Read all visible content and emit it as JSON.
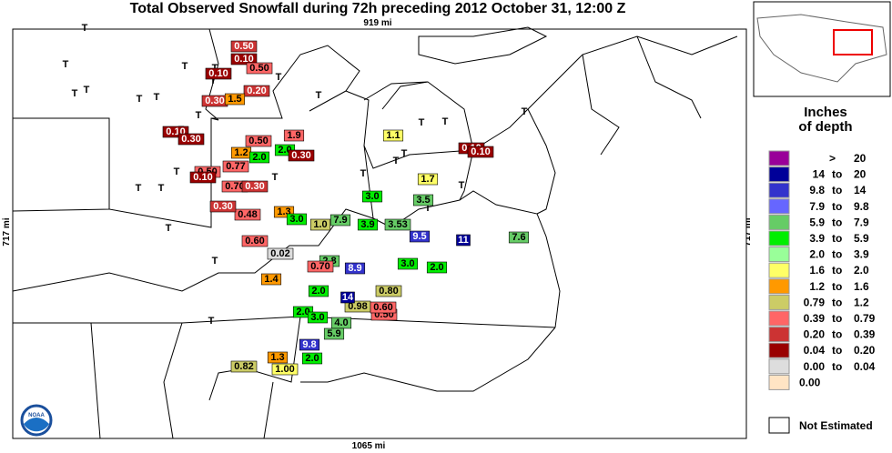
{
  "header": {
    "title": "Total Observed Snowfall during 72h preceding 2012 October 31, 12:00 Z",
    "top_scale": "919 mi",
    "bottom_scale": "1065 mi",
    "left_scale": "717 mi",
    "right_scale": "717 mi"
  },
  "legend": {
    "title_line1": "Inches",
    "title_line2": "of depth",
    "rows": [
      {
        "color": "#990099",
        "low": ">",
        "high": "20"
      },
      {
        "color": "#000099",
        "low": "14",
        "to": "to",
        "high": "20"
      },
      {
        "color": "#3333cc",
        "low": "9.8",
        "to": "to",
        "high": "14"
      },
      {
        "color": "#6666ff",
        "low": "7.9",
        "to": "to",
        "high": "9.8"
      },
      {
        "color": "#66cc66",
        "low": "5.9",
        "to": "to",
        "high": "7.9"
      },
      {
        "color": "#00ee00",
        "low": "3.9",
        "to": "to",
        "high": "5.9"
      },
      {
        "color": "#99ff99",
        "low": "2.0",
        "to": "to",
        "high": "3.9"
      },
      {
        "color": "#ffff66",
        "low": "1.6",
        "to": "to",
        "high": "2.0"
      },
      {
        "color": "#ff9900",
        "low": "1.2",
        "to": "to",
        "high": "1.6"
      },
      {
        "color": "#cccc66",
        "low": "0.79",
        "to": "to",
        "high": "1.2"
      },
      {
        "color": "#ff6666",
        "low": "0.39",
        "to": "to",
        "high": "0.79"
      },
      {
        "color": "#cc3333",
        "low": "0.20",
        "to": "to",
        "high": "0.39"
      },
      {
        "color": "#990000",
        "low": "0.04",
        "to": "to",
        "high": "0.20"
      },
      {
        "color": "#dddddd",
        "low": "0.00",
        "to": "to",
        "high": "0.04"
      },
      {
        "color": "#ffe4c4",
        "low": "0.00"
      }
    ],
    "not_estimated": "Not Estimated"
  },
  "logo": "NOAA",
  "stations": [
    {
      "label": "0.50",
      "color": "#cc3333"
    },
    {
      "label": "0.10",
      "color": "#990000"
    },
    {
      "label": "0.50",
      "color": "#ff6666"
    },
    {
      "label": "0.10",
      "color": "#990000"
    },
    {
      "label": "0.20",
      "color": "#cc3333"
    },
    {
      "label": "0.30",
      "color": "#cc3333"
    },
    {
      "label": "1.5",
      "color": "#ff9900"
    },
    {
      "label": "0.10",
      "color": "#990000"
    },
    {
      "label": "0.30",
      "color": "#990000"
    },
    {
      "label": "1.2",
      "color": "#ff9900"
    },
    {
      "label": "2.0",
      "color": "#00ee00"
    },
    {
      "label": "0.50",
      "color": "#ff6666"
    },
    {
      "label": "1.9",
      "color": "#ff6666"
    },
    {
      "label": "2.0",
      "color": "#00ee00"
    },
    {
      "label": "0.30",
      "color": "#990000"
    },
    {
      "label": "0.77",
      "color": "#ff6666"
    },
    {
      "label": "0.50",
      "color": "#ff6666"
    },
    {
      "label": "0.10",
      "color": "#990000"
    },
    {
      "label": "0.70",
      "color": "#ff6666"
    },
    {
      "label": "0.30",
      "color": "#cc3333"
    },
    {
      "label": "1.1",
      "color": "#ffff66"
    },
    {
      "label": "0.10",
      "color": "#990000"
    },
    {
      "label": "0.10",
      "color": "#990000"
    },
    {
      "label": "3.0",
      "color": "#00ee00"
    },
    {
      "label": "3.5",
      "color": "#66cc66"
    },
    {
      "label": "1.3",
      "color": "#ff9900"
    },
    {
      "label": "3.0",
      "color": "#00ee00"
    },
    {
      "label": "1.0",
      "color": "#cccc66"
    },
    {
      "label": "3.9",
      "color": "#00ee00"
    },
    {
      "label": "7.9",
      "color": "#66cc66"
    },
    {
      "label": "3.53",
      "color": "#66cc66"
    },
    {
      "label": "0.60",
      "color": "#ff6666"
    },
    {
      "label": "0.02",
      "color": "#dddddd"
    },
    {
      "label": "2.8",
      "color": "#66cc66"
    },
    {
      "label": "9.5",
      "color": "#3333cc"
    },
    {
      "label": "11",
      "color": "#000099"
    },
    {
      "label": "7.6",
      "color": "#66cc66"
    },
    {
      "label": "1.4",
      "color": "#ff9900"
    },
    {
      "label": "3.0",
      "color": "#00ee00"
    },
    {
      "label": "2.0",
      "color": "#00ee00"
    },
    {
      "label": "0.70",
      "color": "#ff6666"
    },
    {
      "label": "8.9",
      "color": "#3333cc"
    },
    {
      "label": "2.0",
      "color": "#00ee00"
    },
    {
      "label": "0.80",
      "color": "#cccc66"
    },
    {
      "label": "0.98",
      "color": "#cccc66"
    },
    {
      "label": "2.0",
      "color": "#00ee00"
    },
    {
      "label": "3.0",
      "color": "#00ee00"
    },
    {
      "label": "0.50",
      "color": "#ff6666"
    },
    {
      "label": "0.60",
      "color": "#ff6666"
    },
    {
      "label": "14",
      "color": "#000099"
    },
    {
      "label": "4.0",
      "color": "#66cc66"
    },
    {
      "label": "5.9",
      "color": "#66cc66"
    },
    {
      "label": "9.8",
      "color": "#3333cc"
    },
    {
      "label": "0.82",
      "color": "#cccc66"
    },
    {
      "label": "1.3",
      "color": "#ff9900"
    },
    {
      "label": "1.00",
      "color": "#ffff66"
    },
    {
      "label": "2.0",
      "color": "#00ee00"
    },
    {
      "label": "0.48",
      "color": "#ff6666"
    },
    {
      "label": "1.7",
      "color": "#ffff66"
    },
    {
      "label": "0.30",
      "color": "#cc3333"
    }
  ],
  "trace_mark": "T"
}
